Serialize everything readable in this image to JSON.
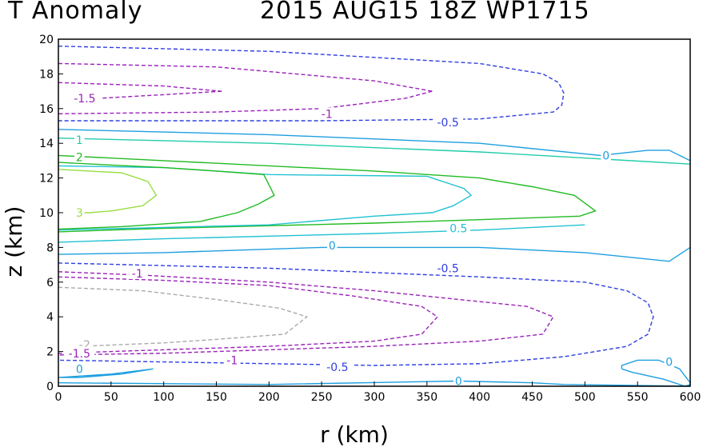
{
  "header": {
    "left": "T Anomaly",
    "right": "2015 AUG15 18Z   WP1715"
  },
  "chart_data": {
    "type": "contour",
    "title": "T Anomaly",
    "subtitle": "2015 AUG15 18Z   WP1715",
    "xlabel": "r (km)",
    "ylabel": "z (km)",
    "xlim": [
      0,
      600
    ],
    "ylim": [
      0,
      20
    ],
    "xticks": [
      0,
      50,
      100,
      150,
      200,
      250,
      300,
      350,
      400,
      450,
      500,
      550,
      600
    ],
    "yticks": [
      0,
      2,
      4,
      6,
      8,
      10,
      12,
      14,
      16,
      18,
      20
    ],
    "colors": {
      "3": "#99dd44",
      "2": "#22bb22",
      "1": "#22ccaa",
      "0.5": "#22c2d2",
      "0": "#1e9fe0",
      "-0.5": "#2e3ee0",
      "-1": "#9a22b8",
      "-1.5": "#9a22b8",
      "-2": "#aaaaaa"
    },
    "contours": [
      {
        "level": "-0.5",
        "dashed": true,
        "points": [
          [
            0,
            19.6
          ],
          [
            200,
            19.3
          ],
          [
            400,
            18.6
          ],
          [
            460,
            18
          ],
          [
            475,
            17.5
          ],
          [
            480,
            16.9
          ],
          [
            478,
            16.2
          ],
          [
            470,
            15.8
          ],
          [
            400,
            15.4
          ],
          [
            250,
            15.3
          ],
          [
            0,
            15.3
          ]
        ]
      },
      {
        "level": "-1",
        "dashed": true,
        "points": [
          [
            0,
            18.6
          ],
          [
            150,
            18.4
          ],
          [
            300,
            17.6
          ],
          [
            355,
            17
          ]
        ]
      },
      {
        "level": "-1",
        "dashed": true,
        "points": [
          [
            355,
            17
          ],
          [
            330,
            16.6
          ],
          [
            250,
            16
          ],
          [
            150,
            15.8
          ],
          [
            0,
            15.7
          ]
        ]
      },
      {
        "level": "-1.5",
        "dashed": true,
        "points": [
          [
            0,
            17.5
          ],
          [
            100,
            17.3
          ],
          [
            155,
            17
          ]
        ]
      },
      {
        "level": "-1.5",
        "dashed": true,
        "points": [
          [
            155,
            17
          ],
          [
            100,
            16.8
          ],
          [
            40,
            16.6
          ]
        ]
      },
      {
        "level": "0",
        "dashed": false,
        "points": [
          [
            0,
            14.8
          ],
          [
            200,
            14.5
          ],
          [
            400,
            14
          ],
          [
            515,
            13.3
          ],
          [
            560,
            13.6
          ],
          [
            580,
            13.6
          ],
          [
            600,
            13
          ]
        ]
      },
      {
        "level": "1",
        "dashed": false,
        "points": [
          [
            0,
            14.3
          ],
          [
            200,
            14
          ],
          [
            400,
            13.5
          ],
          [
            600,
            12.8
          ]
        ]
      },
      {
        "level": "2",
        "dashed": false,
        "points": [
          [
            0,
            13.3
          ],
          [
            100,
            13
          ],
          [
            200,
            12.7
          ],
          [
            300,
            12.4
          ],
          [
            400,
            12
          ],
          [
            450,
            11.5
          ],
          [
            490,
            11
          ],
          [
            510,
            10.1
          ],
          [
            495,
            9.8
          ],
          [
            400,
            9.6
          ],
          [
            300,
            9.4
          ],
          [
            100,
            9.1
          ],
          [
            0,
            8.9
          ]
        ]
      },
      {
        "level": "0.5",
        "dashed": false,
        "points": [
          [
            0,
            8.3
          ],
          [
            100,
            8.5
          ],
          [
            300,
            8.8
          ],
          [
            400,
            9
          ],
          [
            500,
            9.3
          ]
        ]
      },
      {
        "level": "0.5",
        "dashed": false,
        "points": [
          [
            0,
            12.7
          ],
          [
            100,
            12.6
          ],
          [
            200,
            12.2
          ],
          [
            350,
            12.1
          ],
          [
            385,
            11.4
          ],
          [
            392,
            11
          ],
          [
            375,
            10.4
          ],
          [
            355,
            10
          ],
          [
            300,
            9.8
          ],
          [
            200,
            9.3
          ],
          [
            0,
            9
          ]
        ]
      },
      {
        "level": "2",
        "dashed": false,
        "points": [
          [
            0,
            12.9
          ],
          [
            100,
            12.6
          ],
          [
            150,
            12.4
          ],
          [
            195,
            12.2
          ],
          [
            205,
            11
          ],
          [
            190,
            10.5
          ],
          [
            170,
            10
          ],
          [
            135,
            9.5
          ],
          [
            60,
            9.2
          ],
          [
            0,
            9.05
          ]
        ]
      },
      {
        "level": "3",
        "dashed": false,
        "points": [
          [
            0,
            12.5
          ],
          [
            60,
            12.3
          ],
          [
            85,
            11.8
          ],
          [
            93,
            11
          ],
          [
            80,
            10.4
          ],
          [
            50,
            10.1
          ],
          [
            30,
            10
          ],
          [
            15,
            10
          ]
        ]
      },
      {
        "level": "0",
        "dashed": false,
        "points": [
          [
            0,
            7.6
          ],
          [
            100,
            7.7
          ],
          [
            250,
            8
          ],
          [
            400,
            8
          ],
          [
            500,
            7.7
          ],
          [
            580,
            7.2
          ],
          [
            600,
            8
          ]
        ]
      },
      {
        "level": "-0.5",
        "dashed": true,
        "points": [
          [
            0,
            7.1
          ],
          [
            200,
            6.8
          ],
          [
            400,
            6.3
          ],
          [
            500,
            6
          ],
          [
            540,
            5.5
          ],
          [
            560,
            4.8
          ],
          [
            565,
            4
          ],
          [
            560,
            3
          ],
          [
            540,
            2.3
          ],
          [
            480,
            1.7
          ],
          [
            400,
            1.3
          ],
          [
            300,
            1.2
          ],
          [
            200,
            1.3
          ],
          [
            100,
            1.4
          ],
          [
            0,
            1.5
          ]
        ]
      },
      {
        "level": "-1",
        "dashed": true,
        "points": [
          [
            0,
            6.6
          ],
          [
            80,
            6.4
          ],
          [
            200,
            6
          ],
          [
            300,
            5.5
          ],
          [
            380,
            5
          ],
          [
            445,
            4.6
          ],
          [
            470,
            4
          ],
          [
            460,
            3
          ],
          [
            400,
            2.6
          ],
          [
            300,
            2.3
          ],
          [
            200,
            2.1
          ],
          [
            100,
            1.9
          ],
          [
            0,
            1.8
          ]
        ]
      },
      {
        "level": "-1.5",
        "dashed": true,
        "points": [
          [
            0,
            6.3
          ],
          [
            100,
            6.1
          ],
          [
            200,
            5.8
          ],
          [
            280,
            5.2
          ],
          [
            345,
            4.6
          ],
          [
            360,
            4
          ],
          [
            345,
            3
          ],
          [
            300,
            2.6
          ],
          [
            200,
            2.3
          ],
          [
            100,
            2.1
          ],
          [
            0,
            1.9
          ]
        ]
      },
      {
        "level": "-2",
        "dashed": true,
        "points": [
          [
            0,
            5.7
          ],
          [
            80,
            5.5
          ],
          [
            150,
            5
          ],
          [
            210,
            4.5
          ],
          [
            236,
            4
          ],
          [
            215,
            3
          ],
          [
            150,
            2.7
          ],
          [
            100,
            2.5
          ],
          [
            20,
            2.3
          ]
        ]
      },
      {
        "level": "0",
        "dashed": false,
        "points": [
          [
            0,
            0.5
          ],
          [
            50,
            0.7
          ],
          [
            90,
            1
          ],
          [
            60,
            0.7
          ],
          [
            20,
            0.5
          ],
          [
            0,
            0.5
          ]
        ]
      },
      {
        "level": "0",
        "dashed": false,
        "points": [
          [
            0,
            0.2
          ],
          [
            200,
            0.1
          ],
          [
            380,
            0.3
          ],
          [
            450,
            0.2
          ],
          [
            480,
            0.1
          ],
          [
            600,
            0
          ]
        ]
      },
      {
        "level": "0",
        "dashed": false,
        "points": [
          [
            535,
            1
          ],
          [
            545,
            0.8
          ],
          [
            575,
            0.4
          ],
          [
            595,
            0
          ],
          [
            600,
            0.1
          ],
          [
            600,
            0.2
          ],
          [
            590,
            1
          ],
          [
            570,
            1.5
          ],
          [
            550,
            1.5
          ],
          [
            535,
            1.2
          ],
          [
            535,
            1
          ]
        ]
      }
    ],
    "labels": [
      {
        "text": "-0.5",
        "x": 370,
        "y": 15.2,
        "level": "-0.5"
      },
      {
        "text": "-1",
        "x": 255,
        "y": 15.7,
        "level": "-1"
      },
      {
        "text": "-1.5",
        "x": 25,
        "y": 16.6,
        "level": "-1.5"
      },
      {
        "text": "0",
        "x": 520,
        "y": 13.3,
        "level": "0"
      },
      {
        "text": "1",
        "x": 20,
        "y": 14.2,
        "level": "1"
      },
      {
        "text": "2",
        "x": 20,
        "y": 13.2,
        "level": "2"
      },
      {
        "text": "3",
        "x": 20,
        "y": 10,
        "level": "3"
      },
      {
        "text": "0.5",
        "x": 380,
        "y": 9.1,
        "level": "0.5"
      },
      {
        "text": "0",
        "x": 260,
        "y": 8.1,
        "level": "0"
      },
      {
        "text": "-0.5",
        "x": 370,
        "y": 6.8,
        "level": "-0.5"
      },
      {
        "text": "-1",
        "x": 75,
        "y": 6.5,
        "level": "-1"
      },
      {
        "text": "-2",
        "x": 25,
        "y": 2.4,
        "level": "-2"
      },
      {
        "text": "-1.5",
        "x": 20,
        "y": 1.9,
        "level": "-1.5"
      },
      {
        "text": "-1",
        "x": 165,
        "y": 1.5,
        "level": "-1"
      },
      {
        "text": "-0.5",
        "x": 265,
        "y": 1.1,
        "level": "-0.5"
      },
      {
        "text": "0",
        "x": 20,
        "y": 1.0,
        "level": "0"
      },
      {
        "text": "0",
        "x": 380,
        "y": 0.3,
        "level": "0"
      },
      {
        "text": "0",
        "x": 580,
        "y": 1.4,
        "level": "0"
      }
    ]
  }
}
